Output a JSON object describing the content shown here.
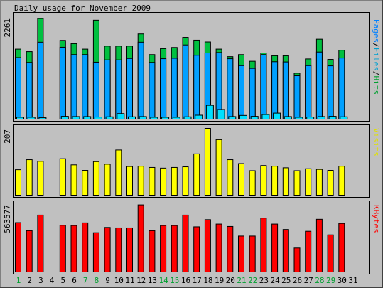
{
  "chart_data": [
    {
      "type": "bar",
      "title": "Daily usage for November 2009",
      "max_label": "2261",
      "ylim": [
        0,
        2261
      ],
      "legend": [
        {
          "text": "Pages",
          "color": "#0080ff"
        },
        {
          "text": "/",
          "color": "#000000"
        },
        {
          "text": "Files",
          "color": "#00a0d0"
        },
        {
          "text": "/",
          "color": "#000000"
        },
        {
          "text": "Hits",
          "color": "#00a030"
        }
      ],
      "categories": [
        "1",
        "2",
        "3",
        "4",
        "5",
        "6",
        "7",
        "8",
        "9",
        "10",
        "11",
        "12",
        "13",
        "14",
        "15",
        "16",
        "17",
        "18",
        "19",
        "20",
        "21",
        "22",
        "23",
        "24",
        "25",
        "26",
        "27",
        "28",
        "29",
        "30",
        "31"
      ],
      "weekend_days": [
        "1",
        "7",
        "8",
        "14",
        "15",
        "21",
        "22",
        "28",
        "29"
      ],
      "series": [
        {
          "name": "Hits",
          "color": "#00c040",
          "values": [
            1524,
            1470,
            2190,
            0,
            1715,
            1643,
            1524,
            2155,
            1590,
            1590,
            1590,
            1855,
            1405,
            1535,
            1560,
            1780,
            1720,
            1680,
            1524,
            1360,
            1405,
            1260,
            1440,
            1380,
            1380,
            1000,
            1310,
            1740,
            1300,
            1500,
            0
          ]
        },
        {
          "name": "Files",
          "color": "#00a0ff",
          "values": [
            1340,
            1235,
            1675,
            0,
            1565,
            1405,
            1405,
            1240,
            1290,
            1290,
            1320,
            1675,
            1235,
            1315,
            1325,
            1615,
            1390,
            1440,
            1450,
            1315,
            1165,
            1105,
            1405,
            1250,
            1245,
            945,
            1165,
            1460,
            1160,
            1330,
            0
          ]
        },
        {
          "name": "Pages",
          "color": "#00e0ff",
          "values": [
            40,
            40,
            30,
            0,
            60,
            55,
            55,
            45,
            50,
            120,
            50,
            55,
            40,
            40,
            40,
            50,
            85,
            300,
            210,
            55,
            80,
            60,
            100,
            130,
            55,
            40,
            45,
            55,
            60,
            50,
            0
          ]
        }
      ]
    },
    {
      "type": "bar",
      "max_label": "207",
      "ylim": [
        0,
        207
      ],
      "legend": [
        {
          "text": "Visits",
          "color": "#e0e000"
        }
      ],
      "categories": [
        "1",
        "2",
        "3",
        "4",
        "5",
        "6",
        "7",
        "8",
        "9",
        "10",
        "11",
        "12",
        "13",
        "14",
        "15",
        "16",
        "17",
        "18",
        "19",
        "20",
        "21",
        "22",
        "23",
        "24",
        "25",
        "26",
        "27",
        "28",
        "29",
        "30",
        "31"
      ],
      "series": [
        {
          "name": "Visits",
          "color": "#ffff00",
          "values": [
            79,
            110,
            105,
            0,
            113,
            94,
            77,
            104,
            96,
            140,
            89,
            90,
            86,
            84,
            86,
            88,
            128,
            207,
            172,
            110,
            98,
            76,
            92,
            90,
            85,
            76,
            82,
            80,
            77,
            90,
            0
          ]
        }
      ]
    },
    {
      "type": "bar",
      "max_label": "563577",
      "ylim": [
        0,
        563577
      ],
      "legend": [
        {
          "text": "KBytes",
          "color": "#ff0000"
        }
      ],
      "categories": [
        "1",
        "2",
        "3",
        "4",
        "5",
        "6",
        "7",
        "8",
        "9",
        "10",
        "11",
        "12",
        "13",
        "14",
        "15",
        "16",
        "17",
        "18",
        "19",
        "20",
        "21",
        "22",
        "23",
        "24",
        "25",
        "26",
        "27",
        "28",
        "29",
        "30",
        "31"
      ],
      "series": [
        {
          "name": "KBytes",
          "color": "#ff0000",
          "values": [
            412000,
            345000,
            475000,
            0,
            390000,
            388000,
            410000,
            328000,
            372000,
            368000,
            368000,
            560000,
            345000,
            388000,
            388000,
            475000,
            377000,
            437000,
            400000,
            380000,
            300000,
            300000,
            450000,
            400000,
            355000,
            200000,
            340000,
            440000,
            310000,
            405000,
            0
          ]
        }
      ]
    }
  ]
}
